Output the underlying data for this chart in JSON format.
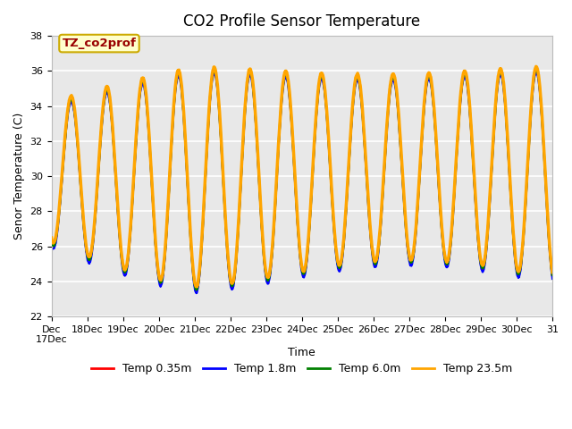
{
  "title": "CO2 Profile Sensor Temperature",
  "ylabel": "Senor Temperature (C)",
  "xlabel": "Time",
  "annotation_text": "TZ_co2prof",
  "annotation_bg": "#ffffcc",
  "annotation_border": "#ccaa00",
  "annotation_text_color": "#990000",
  "ylim": [
    22,
    38
  ],
  "xlim": [
    0,
    14
  ],
  "series_colors": [
    "red",
    "blue",
    "green",
    "orange"
  ],
  "series_labels": [
    "Temp 0.35m",
    "Temp 1.8m",
    "Temp 6.0m",
    "Temp 23.5m"
  ],
  "x_tick_positions": [
    0,
    1,
    2,
    3,
    4,
    5,
    6,
    7,
    8,
    9,
    10,
    11,
    12,
    13,
    14
  ],
  "x_tick_labels": [
    "Dec\n17Dec",
    "18Dec",
    "19Dec",
    "20Dec",
    "21Dec",
    "22Dec",
    "23Dec",
    "24Dec",
    "25Dec",
    "26Dec",
    "27Dec",
    "28Dec",
    "29Dec",
    "30Dec",
    "31"
  ],
  "y_ticks": [
    22,
    24,
    26,
    28,
    30,
    32,
    34,
    36,
    38
  ],
  "plot_bg": "#e8e8e8",
  "grid_color": "white",
  "title_fontsize": 12,
  "axis_fontsize": 9,
  "tick_fontsize": 8,
  "legend_fontsize": 9
}
